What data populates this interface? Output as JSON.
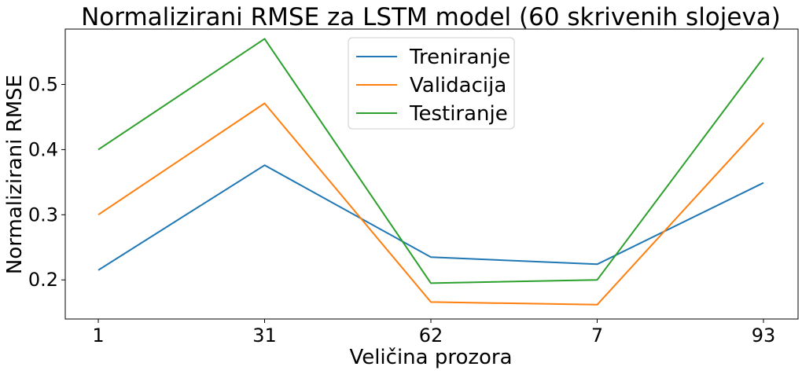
{
  "chart_data": {
    "type": "line",
    "title": "Normalizirani RMSE za LSTM model (60 skrivenih slojeva)",
    "xlabel": "Veličina prozora",
    "ylabel": "Normalizirani RMSE",
    "categories": [
      "1",
      "31",
      "62",
      "7",
      "93"
    ],
    "ylim": [
      0.14,
      0.585
    ],
    "yticks": [
      0.2,
      0.3,
      0.4,
      0.5
    ],
    "ytick_labels": [
      "0.2",
      "0.3",
      "0.4",
      "0.5"
    ],
    "grid": false,
    "legend_position": "top-center",
    "series": [
      {
        "name": "Treniranje",
        "color": "#1f77b4",
        "values": [
          0.215,
          0.376,
          0.235,
          0.224,
          0.349
        ]
      },
      {
        "name": "Validacija",
        "color": "#ff7f0e",
        "values": [
          0.3,
          0.471,
          0.166,
          0.162,
          0.441
        ]
      },
      {
        "name": "Testiranje",
        "color": "#2ca02c",
        "values": [
          0.4,
          0.57,
          0.195,
          0.2,
          0.541
        ]
      }
    ]
  }
}
